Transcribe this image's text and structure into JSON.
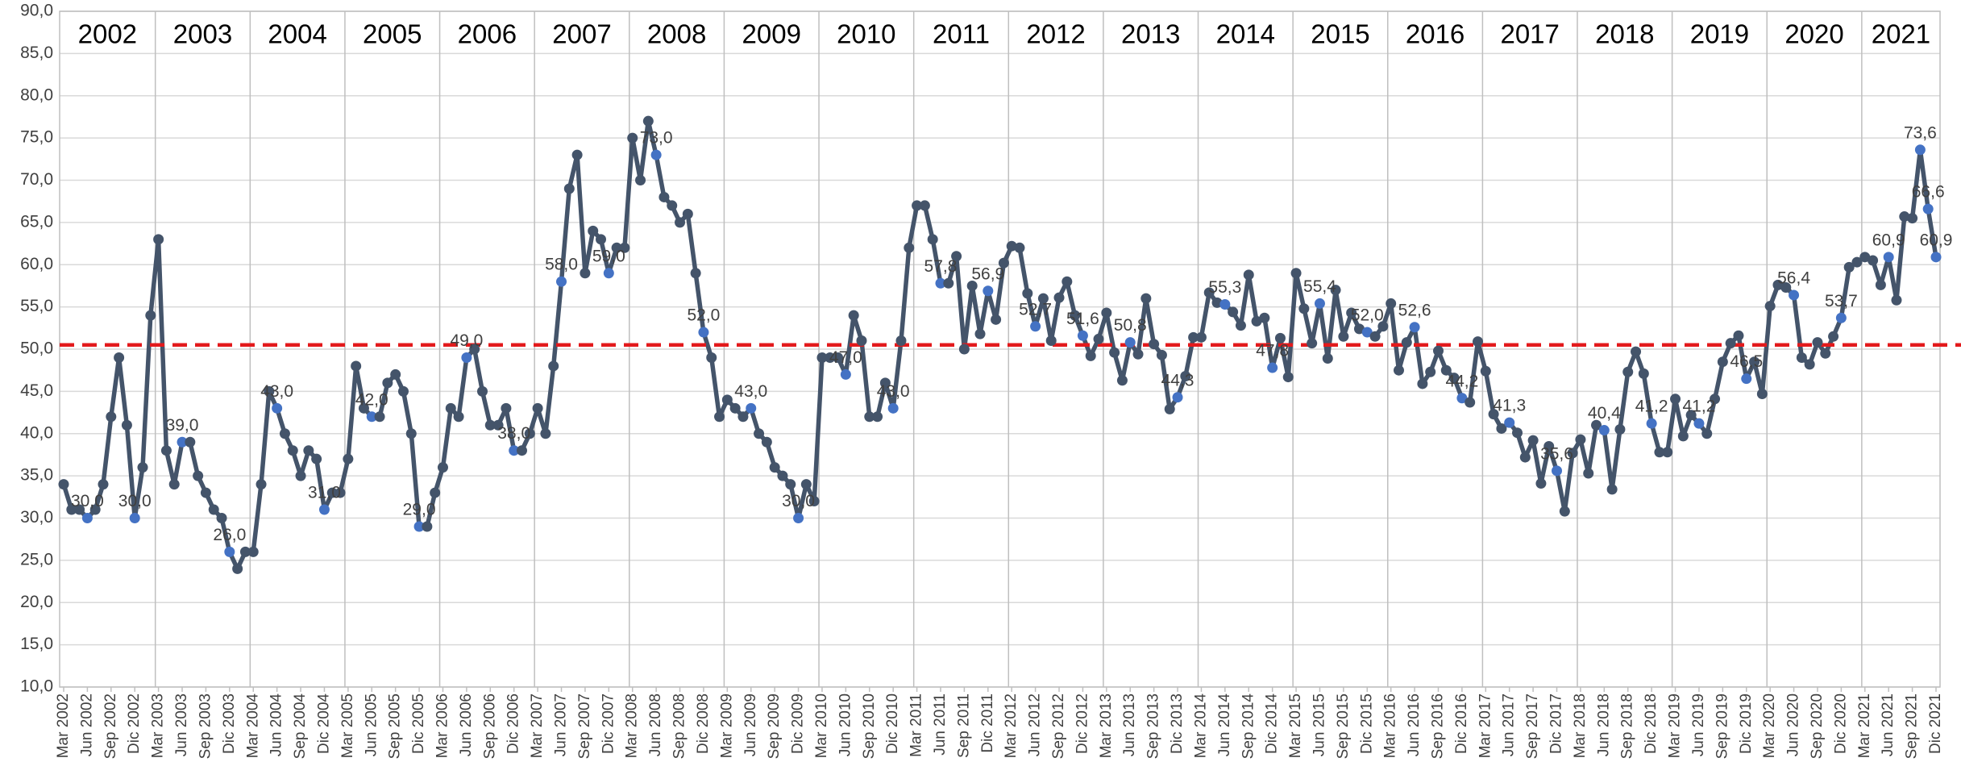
{
  "chart_data": {
    "type": "line",
    "categories": [
      "Mar 2002",
      null,
      null,
      "Jun 2002",
      null,
      null,
      "Sep 2002",
      null,
      null,
      "Dic 2002",
      null,
      null,
      "Mar 2003",
      null,
      null,
      "Jun 2003",
      null,
      null,
      "Sep 2003",
      null,
      null,
      "Dic 2003",
      null,
      null,
      "Mar 2004",
      null,
      null,
      "Jun 2004",
      null,
      null,
      "Sep 2004",
      null,
      null,
      "Dic 2004",
      null,
      null,
      "Mar 2005",
      null,
      null,
      "Jun 2005",
      null,
      null,
      "Sep 2005",
      null,
      null,
      "Dic 2005",
      null,
      null,
      "Mar 2006",
      null,
      null,
      "Jun 2006",
      null,
      null,
      "Sep 2006",
      null,
      null,
      "Dic 2006",
      null,
      null,
      "Mar 2007",
      null,
      null,
      "Jun 2007",
      null,
      null,
      "Sep 2007",
      null,
      null,
      "Dic 2007",
      null,
      null,
      "Mar 2008",
      null,
      null,
      "Jun 2008",
      null,
      null,
      "Sep 2008",
      null,
      null,
      "Dic 2008",
      null,
      null,
      "Mar 2009",
      null,
      null,
      "Jun 2009",
      null,
      null,
      "Sep 2009",
      null,
      null,
      "Dic 2009",
      null,
      null,
      "Mar 2010",
      null,
      null,
      "Jun 2010",
      null,
      null,
      "Sep 2010",
      null,
      null,
      "Dic 2010",
      null,
      null,
      "Mar 2011",
      null,
      null,
      "Jun 2011",
      null,
      null,
      "Sep 2011",
      null,
      null,
      "Dic 2011",
      null,
      null,
      "Mar 2012",
      null,
      null,
      "Jun 2012",
      null,
      null,
      "Sep 2012",
      null,
      null,
      "Dic 2012",
      null,
      null,
      "Mar 2013",
      null,
      null,
      "Jun 2013",
      null,
      null,
      "Sep 2013",
      null,
      null,
      "Dic 2013",
      null,
      null,
      "Mar 2014",
      null,
      null,
      "Jun 2014",
      null,
      null,
      "Sep 2014",
      null,
      null,
      "Dic 2014",
      null,
      null,
      "Mar 2015",
      null,
      null,
      "Jun 2015",
      null,
      null,
      "Sep 2015",
      null,
      null,
      "Dic 2015",
      null,
      null,
      "Mar 2016",
      null,
      null,
      "Jun 2016",
      null,
      null,
      "Sep 2016",
      null,
      null,
      "Dic 2016",
      null,
      null,
      "Mar 2017",
      null,
      null,
      "Jun 2017",
      null,
      null,
      "Sep 2017",
      null,
      null,
      "Dic 2017",
      null,
      null,
      "Mar 2018",
      null,
      null,
      "Jun 2018",
      null,
      null,
      "Sep 2018",
      null,
      null,
      "Dic 2018",
      null,
      null,
      "Mar 2019",
      null,
      null,
      "Jun 2019",
      null,
      null,
      "Sep 2019",
      null,
      null,
      "Dic 2019",
      null,
      null,
      "Mar 2020",
      null,
      null,
      "Jun 2020",
      null,
      null,
      "Sep 2020",
      null,
      null,
      "Dic 2020",
      null,
      null,
      "Mar 2021",
      null,
      null,
      "Jun 2021",
      null,
      null,
      "Sep 2021",
      null,
      null,
      "Dic 2021"
    ],
    "values": [
      34,
      31,
      31,
      30,
      31,
      34,
      42,
      49,
      41,
      30,
      36,
      54,
      63,
      38,
      34,
      39,
      39,
      35,
      33,
      31,
      30,
      26,
      24,
      26,
      26,
      34,
      45,
      43,
      40,
      38,
      35,
      38,
      37,
      31,
      33,
      33,
      37,
      48,
      43,
      42,
      42,
      46,
      47,
      45,
      40,
      29,
      29,
      33,
      36,
      43,
      42,
      49,
      50,
      45,
      41,
      41,
      43,
      38,
      38,
      40,
      43,
      40,
      48,
      58,
      69,
      73,
      59,
      64,
      63,
      59,
      62,
      62,
      75,
      70,
      77,
      73,
      68,
      67,
      65,
      66,
      59,
      52,
      49,
      42,
      44,
      43,
      42,
      43,
      40,
      39,
      36,
      35,
      34,
      30,
      34,
      32,
      49,
      49,
      49,
      47,
      54,
      51,
      42,
      42,
      46,
      43,
      51,
      62,
      67,
      67,
      63,
      57.8,
      57.8,
      61,
      50,
      57.5,
      51.8,
      56.9,
      53.5,
      60.2,
      62.2,
      62,
      56.6,
      52.7,
      56,
      51,
      56.1,
      58,
      54,
      51.6,
      49.2,
      51.2,
      54.3,
      49.6,
      46.3,
      50.8,
      49.4,
      56,
      50.6,
      49.3,
      42.9,
      44.3,
      46.8,
      51.4,
      51.4,
      56.7,
      55.5,
      55.3,
      54.4,
      52.8,
      58.8,
      53.3,
      53.7,
      47.8,
      51.3,
      46.7,
      59,
      54.8,
      50.7,
      55.4,
      48.9,
      57,
      51.5,
      54.3,
      52.4,
      52,
      51.5,
      52.7,
      55.4,
      47.5,
      50.8,
      52.6,
      45.9,
      47.3,
      49.8,
      47.5,
      46.6,
      44.2,
      43.7,
      50.9,
      47.4,
      42.3,
      40.6,
      41.3,
      40.1,
      37.2,
      39.2,
      34.1,
      38.5,
      35.6,
      30.8,
      37.7,
      39.3,
      35.3,
      41,
      40.4,
      33.4,
      40.5,
      47.3,
      49.7,
      47.1,
      41.2,
      37.8,
      37.8,
      44.1,
      39.7,
      42.2,
      41.2,
      40,
      44.1,
      48.5,
      50.7,
      51.6,
      46.5,
      48.5,
      44.7,
      55.1,
      57.6,
      57.3,
      56.4,
      49,
      48.2,
      50.8,
      49.5,
      51.5,
      53.7,
      59.7,
      60.3,
      60.9,
      60.5,
      57.6,
      60.9,
      55.8,
      65.7,
      65.5,
      73.6,
      66.6,
      60.9
    ],
    "value_labels": [
      null,
      null,
      null,
      "30,0",
      null,
      null,
      null,
      null,
      null,
      "30,0",
      null,
      null,
      null,
      null,
      null,
      "39,0",
      null,
      null,
      null,
      null,
      null,
      "26,0",
      null,
      null,
      null,
      null,
      null,
      "43,0",
      null,
      null,
      null,
      null,
      null,
      "31,0",
      null,
      null,
      null,
      null,
      null,
      "42,0",
      null,
      null,
      null,
      null,
      null,
      "29,0",
      null,
      null,
      null,
      null,
      null,
      "49,0",
      null,
      null,
      null,
      null,
      null,
      "38,0",
      null,
      null,
      null,
      null,
      null,
      "58,0",
      null,
      null,
      null,
      null,
      null,
      "59,0",
      null,
      null,
      null,
      null,
      null,
      "73,0",
      null,
      null,
      null,
      null,
      null,
      "52,0",
      null,
      null,
      null,
      null,
      null,
      "43,0",
      null,
      null,
      null,
      null,
      null,
      "30,0",
      null,
      null,
      null,
      null,
      null,
      "47,0",
      null,
      null,
      null,
      null,
      null,
      "43,0",
      null,
      null,
      null,
      null,
      null,
      "57,8",
      null,
      null,
      null,
      null,
      null,
      "56,9",
      null,
      null,
      null,
      null,
      null,
      "52,7",
      null,
      null,
      null,
      null,
      null,
      "51,6",
      null,
      null,
      null,
      null,
      null,
      "50,8",
      null,
      null,
      null,
      null,
      null,
      "44,3",
      null,
      null,
      null,
      null,
      null,
      "55,3",
      null,
      null,
      null,
      null,
      null,
      "47,8",
      null,
      null,
      null,
      null,
      null,
      "55,4",
      null,
      null,
      null,
      null,
      null,
      "52,0",
      null,
      null,
      null,
      null,
      null,
      "52,6",
      null,
      null,
      null,
      null,
      null,
      "44,2",
      null,
      null,
      null,
      null,
      null,
      "41,3",
      null,
      null,
      null,
      null,
      null,
      "35,6",
      null,
      null,
      null,
      null,
      null,
      "40,4",
      null,
      null,
      null,
      null,
      null,
      "41,2",
      null,
      null,
      null,
      null,
      null,
      "41,2",
      null,
      null,
      null,
      null,
      null,
      "46,5",
      null,
      null,
      null,
      null,
      null,
      "56,4",
      null,
      null,
      null,
      null,
      null,
      "53,7",
      null,
      null,
      null,
      null,
      null,
      "60,9",
      null,
      null,
      null,
      "73,6",
      "66,6",
      "60,9"
    ],
    "year_labels": [
      "2002",
      "2003",
      "2004",
      "2005",
      "2006",
      "2007",
      "2008",
      "2009",
      "2010",
      "2011",
      "2012",
      "2013",
      "2014",
      "2015",
      "2016",
      "2017",
      "2018",
      "2019",
      "2020",
      "2021"
    ],
    "color": "#44546a",
    "highlight_color": "#4472c4",
    "reference_line": 50.5,
    "reference_color": "#e31a1c",
    "ylim": [
      10,
      90
    ],
    "yticks": [
      {
        "value": 10,
        "label": "10,0"
      },
      {
        "value": 15,
        "label": "15,0"
      },
      {
        "value": 20,
        "label": "20,0"
      },
      {
        "value": 25,
        "label": "25,0"
      },
      {
        "value": 30,
        "label": "30,0"
      },
      {
        "value": 35,
        "label": "35,0"
      },
      {
        "value": 40,
        "label": "40,0"
      },
      {
        "value": 45,
        "label": "45,0"
      },
      {
        "value": 50,
        "label": "50,0"
      },
      {
        "value": 55,
        "label": "55,0"
      },
      {
        "value": 60,
        "label": "60,0"
      },
      {
        "value": 65,
        "label": "65,0"
      },
      {
        "value": 70,
        "label": "70,0"
      },
      {
        "value": 75,
        "label": "75,0"
      },
      {
        "value": 80,
        "label": "80,0"
      },
      {
        "value": 85,
        "label": "85,0"
      },
      {
        "value": 90,
        "label": "90,0"
      }
    ],
    "grid": true
  }
}
